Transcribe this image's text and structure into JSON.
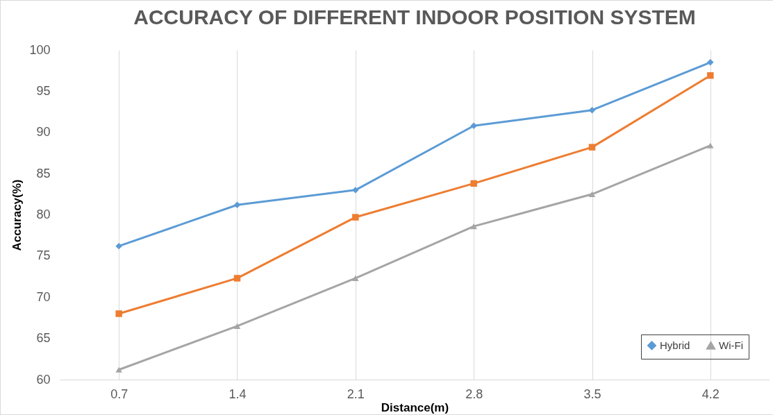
{
  "chart_data": {
    "type": "line",
    "title": "ACCURACY OF DIFFERENT INDOOR POSITION SYSTEM",
    "xlabel": "Distance(m)",
    "ylabel": "Accuracy(%)",
    "categories": [
      "0.7",
      "1.4",
      "2.1",
      "2.8",
      "3.5",
      "4.2"
    ],
    "series": [
      {
        "name": "Hybrid",
        "color": "#5b9bd5",
        "marker": "diamond",
        "values": [
          76.2,
          81.2,
          83.0,
          90.8,
          92.7,
          98.5
        ]
      },
      {
        "color": "#ed7d31",
        "marker": "square",
        "values": [
          68.0,
          72.3,
          79.7,
          83.8,
          88.2,
          96.9
        ]
      },
      {
        "name": "Wi-Fi",
        "color": "#a5a5a5",
        "marker": "triangle",
        "values": [
          61.2,
          66.5,
          72.3,
          78.6,
          82.5,
          88.4
        ]
      }
    ],
    "ylim": [
      60,
      100
    ],
    "yticks": [
      60,
      65,
      70,
      75,
      80,
      85,
      90,
      95,
      100
    ],
    "grid": "x",
    "legend": "bottom right"
  }
}
